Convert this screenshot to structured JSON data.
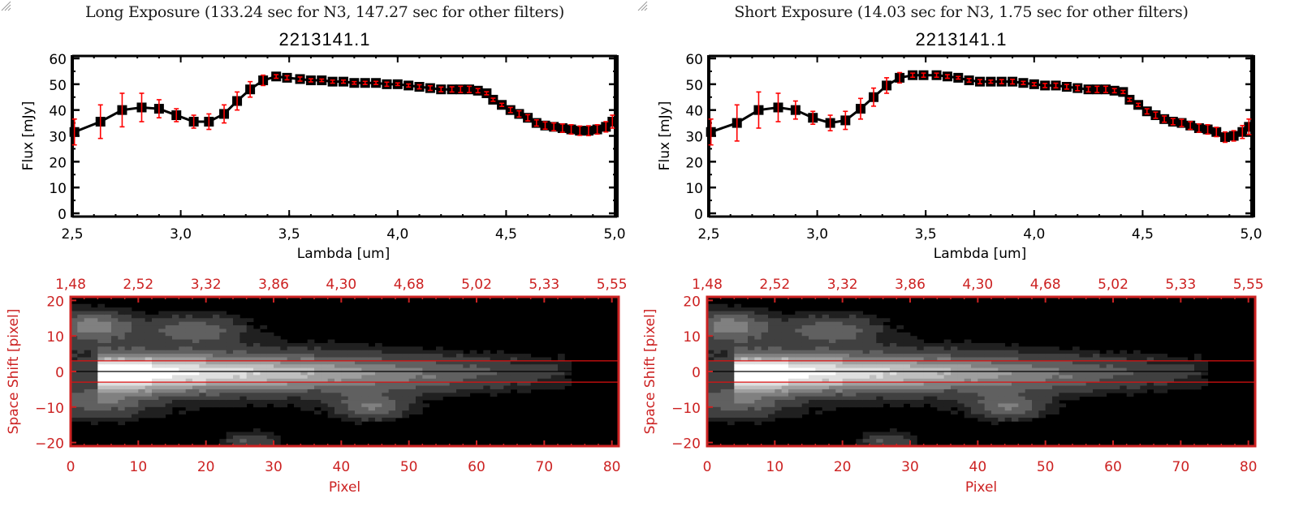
{
  "colors": {
    "axis_black": "#000000",
    "error_red": "#ff0000",
    "image_axis_red": "#cc2222",
    "aperture_red": "#dd1111"
  },
  "panels": [
    {
      "exposure_title": "Long Exposure (133.24 sec for N3, 147.27 sec for other filters)",
      "object_title": "2213141.1"
    },
    {
      "exposure_title": "Short Exposure (14.03 sec for N3, 1.75 sec for other filters)",
      "object_title": "2213141.1"
    }
  ],
  "chart_data": [
    {
      "type": "line",
      "title": "2213141.1",
      "subtitle": "Long Exposure (133.24 sec for N3, 147.27 sec for other filters)",
      "xlabel": "Lambda [um]",
      "ylabel": "Flux [mJy]",
      "xlim": [
        2.5,
        5.0
      ],
      "ylim": [
        0,
        60
      ],
      "xticks": [
        "2.5",
        "3.0",
        "3.5",
        "4.0",
        "4.5",
        "5.0"
      ],
      "yticks": [
        "0",
        "10",
        "20",
        "30",
        "40",
        "50",
        "60"
      ],
      "grid": false,
      "series": [
        {
          "name": "flux",
          "x": [
            2.51,
            2.63,
            2.73,
            2.82,
            2.9,
            2.98,
            3.06,
            3.13,
            3.2,
            3.26,
            3.32,
            3.38,
            3.44,
            3.49,
            3.55,
            3.6,
            3.65,
            3.7,
            3.75,
            3.8,
            3.85,
            3.9,
            3.95,
            4.0,
            4.05,
            4.1,
            4.15,
            4.2,
            4.25,
            4.29,
            4.33,
            4.37,
            4.41,
            4.44,
            4.48,
            4.52,
            4.56,
            4.6,
            4.64,
            4.68,
            4.72,
            4.76,
            4.8,
            4.84,
            4.88,
            4.92,
            4.96,
            4.99
          ],
          "y": [
            31.5,
            35.5,
            40,
            41,
            40.5,
            38,
            35.5,
            35.5,
            38.5,
            43.5,
            48,
            51.5,
            53,
            52.5,
            52,
            51.5,
            51.5,
            51,
            51,
            50.5,
            50.5,
            50.5,
            50,
            50,
            49.5,
            49,
            48.5,
            48,
            48,
            48,
            48,
            47.5,
            46.5,
            44,
            42,
            40,
            38.5,
            37,
            35,
            34,
            33.5,
            33,
            32.5,
            32,
            32,
            32.5,
            33.5,
            35.5
          ],
          "yerr": [
            5,
            6.5,
            6.5,
            5.5,
            3.5,
            2.5,
            2.5,
            3,
            3.5,
            3.5,
            3,
            2,
            0.7,
            0.8,
            0.8,
            0.6,
            0.5,
            0.6,
            0.6,
            0.5,
            0.6,
            0.6,
            0.8,
            0.5,
            0.6,
            0.8,
            0.9,
            0.9,
            1,
            1.2,
            1.2,
            0.8,
            0.6,
            0.6,
            0.6,
            1,
            1.2,
            1.2,
            1.2,
            1.4,
            1.5,
            1.6,
            1.8,
            1.8,
            1.9,
            1.8,
            2,
            2.5
          ]
        }
      ]
    },
    {
      "type": "line",
      "title": "2213141.1",
      "subtitle": "Short Exposure (14.03 sec for N3, 1.75 sec for other filters)",
      "xlabel": "Lambda [um]",
      "ylabel": "Flux [mJy]",
      "xlim": [
        2.5,
        5.0
      ],
      "ylim": [
        0,
        60
      ],
      "xticks": [
        "2.5",
        "3.0",
        "3.5",
        "4.0",
        "4.5",
        "5.0"
      ],
      "yticks": [
        "0",
        "10",
        "20",
        "30",
        "40",
        "50",
        "60"
      ],
      "grid": false,
      "series": [
        {
          "name": "flux",
          "x": [
            2.51,
            2.63,
            2.73,
            2.82,
            2.9,
            2.98,
            3.06,
            3.13,
            3.2,
            3.26,
            3.32,
            3.38,
            3.44,
            3.49,
            3.55,
            3.6,
            3.65,
            3.7,
            3.75,
            3.8,
            3.85,
            3.9,
            3.95,
            4.0,
            4.05,
            4.1,
            4.15,
            4.2,
            4.25,
            4.29,
            4.33,
            4.37,
            4.41,
            4.44,
            4.48,
            4.52,
            4.56,
            4.6,
            4.64,
            4.68,
            4.72,
            4.76,
            4.8,
            4.84,
            4.88,
            4.92,
            4.96,
            4.99
          ],
          "y": [
            31.5,
            35,
            40,
            41,
            40,
            37,
            35,
            36,
            40.5,
            45,
            49.5,
            52.5,
            53.5,
            53.5,
            53.5,
            53,
            52.5,
            51.5,
            51,
            51,
            51,
            51,
            50.5,
            50,
            49.5,
            49.5,
            49,
            48.5,
            48,
            48,
            48,
            47.5,
            47,
            44,
            42,
            39.5,
            38,
            36.5,
            35.5,
            35,
            34,
            33,
            32.5,
            31.5,
            29.5,
            30,
            31.5,
            33.5
          ],
          "yerr": [
            5,
            7,
            7,
            5.5,
            3.5,
            2.5,
            3,
            3.5,
            4,
            3.5,
            3,
            2,
            0.8,
            0.8,
            0.8,
            0.7,
            0.5,
            0.7,
            0.8,
            0.6,
            0.8,
            0.9,
            0.6,
            0.6,
            0.8,
            0.9,
            0.9,
            1,
            1,
            1.2,
            1.2,
            0.8,
            0.6,
            0.6,
            0.6,
            1,
            1.2,
            1.2,
            1.2,
            1.4,
            1.5,
            1.6,
            1.8,
            1.8,
            2,
            2,
            2.5,
            3
          ]
        }
      ]
    },
    {
      "type": "heatmap",
      "title": "",
      "xlabel": "Pixel",
      "ylabel": "Space Shift [pixel]",
      "xlim": [
        0,
        81
      ],
      "ylim": [
        -21,
        21
      ],
      "xticks": [
        "0",
        "10",
        "20",
        "30",
        "40",
        "50",
        "60",
        "70",
        "80"
      ],
      "top_xticks": [
        "1.48",
        "2.52",
        "3.32",
        "3.86",
        "4.30",
        "4.68",
        "5.02",
        "5.33",
        "5.55"
      ],
      "yticks": [
        "-20",
        "-10",
        "0",
        "10",
        "20"
      ],
      "aperture_lines": [
        -3,
        3
      ],
      "center_line": 0,
      "colormap": "grayscale"
    },
    {
      "type": "heatmap",
      "title": "",
      "xlabel": "Pixel",
      "ylabel": "Space Shift [pixel]",
      "xlim": [
        0,
        81
      ],
      "ylim": [
        -21,
        21
      ],
      "xticks": [
        "0",
        "10",
        "20",
        "30",
        "40",
        "50",
        "60",
        "70",
        "80"
      ],
      "top_xticks": [
        "1.48",
        "2.52",
        "3.32",
        "3.86",
        "4.30",
        "4.68",
        "5.02",
        "5.33",
        "5.55"
      ],
      "yticks": [
        "-20",
        "-10",
        "0",
        "10",
        "20"
      ],
      "aperture_lines": [
        -3,
        3
      ],
      "center_line": 0,
      "colormap": "grayscale"
    }
  ]
}
